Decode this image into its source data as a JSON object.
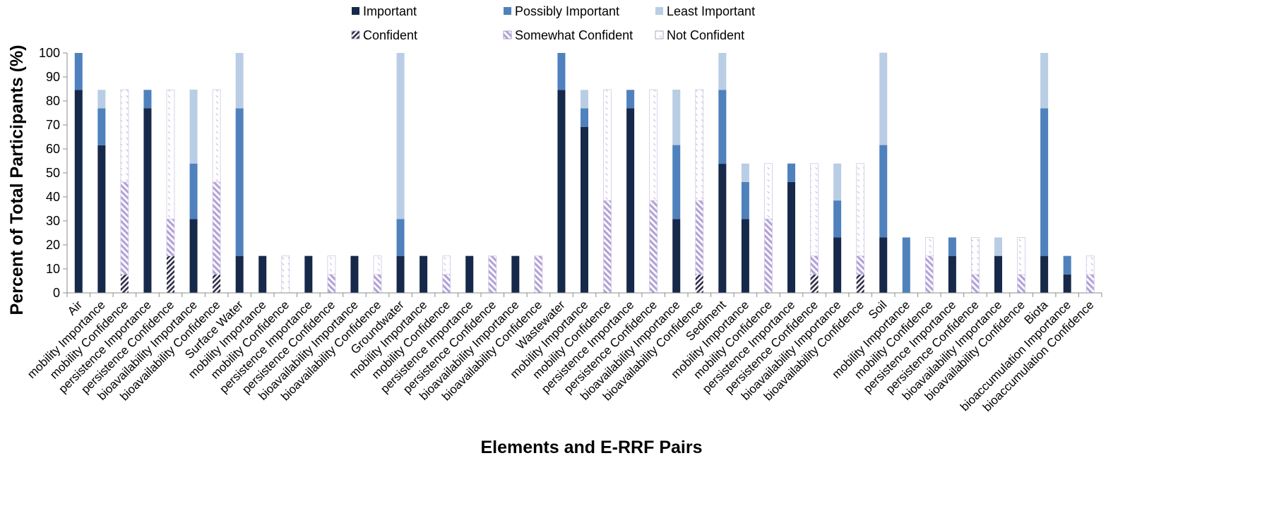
{
  "chart_data": {
    "type": "bar",
    "stacked": true,
    "xlabel": "Elements and E-RRF Pairs",
    "ylabel": "Percent of Total Participants (%)",
    "ylim": [
      0,
      100
    ],
    "yticks": [
      0,
      10,
      20,
      30,
      40,
      50,
      60,
      70,
      80,
      90,
      100
    ],
    "grid": false,
    "legend_position": "top",
    "categories": [
      "Air",
      "mobility Importance",
      "mobility Confidence",
      "persistence Importance",
      "persistence Confidence",
      "bioavailability Importance",
      "bioavailability Confidence",
      "Surface Water",
      "mobility Importance",
      "mobility Confidence",
      "persistence Importance",
      "persistence Confidence",
      "bioavailability Importance",
      "bioavailability Confidence",
      "Groundwater",
      "mobility Importance",
      "mobility Confidence",
      "persistence Importance",
      "persistence Confidence",
      "bioavailability Importance",
      "bioavailability Confidence",
      "Wastewater",
      "mobility Importance",
      "mobility Confidence",
      "persistence Importance",
      "persistence Confidence",
      "bioavailability Importance",
      "bioavailability Confidence",
      "Sediment",
      "mobility Importance",
      "mobility Confidence",
      "persistence Importance",
      "persistence Confidence",
      "bioavailability Importance",
      "bioavailability Confidence",
      "Soil",
      "mobility Importance",
      "mobility Confidence",
      "persistence Importance",
      "persistence Confidence",
      "bioavailability Importance",
      "bioavailability Confidence",
      "Biota",
      "bioaccumulation Importance",
      "bioaccumulation Confidence"
    ],
    "series": [
      {
        "name": "Important",
        "color": "#17294a",
        "pattern": "solid",
        "values": [
          84.6,
          61.5,
          0,
          76.9,
          0,
          30.8,
          0,
          15.4,
          15.4,
          0,
          15.4,
          0,
          15.4,
          0,
          15.4,
          15.4,
          0,
          15.4,
          0,
          15.4,
          0,
          84.6,
          69.2,
          0,
          76.9,
          0,
          30.8,
          0,
          53.8,
          30.8,
          0,
          46.2,
          0,
          23.1,
          0,
          23.1,
          0,
          0,
          15.4,
          0,
          15.4,
          0,
          15.4,
          7.7,
          0
        ]
      },
      {
        "name": "Possibly Important",
        "color": "#4f81bd",
        "pattern": "solid",
        "values": [
          15.4,
          15.4,
          0,
          7.7,
          0,
          23.1,
          0,
          61.5,
          0,
          0,
          0,
          0,
          0,
          0,
          15.4,
          0,
          0,
          0,
          0,
          0,
          0,
          15.4,
          7.7,
          0,
          7.7,
          0,
          30.8,
          0,
          30.8,
          15.4,
          0,
          7.7,
          0,
          15.4,
          0,
          38.5,
          23.1,
          0,
          7.7,
          0,
          0,
          0,
          61.5,
          7.7,
          0
        ]
      },
      {
        "name": "Least Important",
        "color": "#b9cde5",
        "pattern": "solid",
        "values": [
          0,
          7.7,
          0,
          0,
          0,
          30.8,
          0,
          23.1,
          0,
          0,
          0,
          0,
          0,
          0,
          69.2,
          0,
          0,
          0,
          0,
          0,
          0,
          0,
          7.7,
          0,
          0,
          0,
          23.1,
          0,
          15.4,
          7.7,
          0,
          0,
          0,
          15.4,
          0,
          38.5,
          0,
          0,
          0,
          0,
          7.7,
          0,
          23.1,
          0,
          0
        ]
      },
      {
        "name": "Confident",
        "color": "#2e2e4a",
        "pattern": "hatch-dark",
        "values": [
          0,
          0,
          7.7,
          0,
          15.4,
          0,
          7.7,
          0,
          0,
          0,
          0,
          0,
          0,
          0,
          0,
          0,
          0,
          0,
          0,
          0,
          0,
          0,
          0,
          0,
          0,
          0,
          0,
          7.7,
          0,
          0,
          0,
          0,
          7.7,
          0,
          7.7,
          0,
          0,
          0,
          0,
          0,
          0,
          0,
          0,
          0,
          0
        ]
      },
      {
        "name": "Somewhat Confident",
        "color": "#b3a2d6",
        "pattern": "hatch-purple",
        "values": [
          0,
          0,
          38.5,
          0,
          15.4,
          0,
          38.5,
          0,
          0,
          0,
          0,
          7.7,
          0,
          7.7,
          0,
          0,
          7.7,
          0,
          15.4,
          0,
          15.4,
          0,
          0,
          38.5,
          0,
          38.5,
          0,
          30.8,
          0,
          0,
          30.8,
          0,
          7.7,
          0,
          7.7,
          0,
          0,
          15.4,
          0,
          7.7,
          0,
          7.7,
          0,
          0,
          7.7
        ]
      },
      {
        "name": "Not Confident",
        "color": "#c9c2e0",
        "pattern": "hatch-light",
        "values": [
          0,
          0,
          38.5,
          0,
          53.8,
          0,
          38.5,
          0,
          0,
          15.4,
          0,
          7.7,
          0,
          7.7,
          0,
          0,
          7.7,
          0,
          0,
          0,
          0,
          0,
          0,
          46.2,
          0,
          46.2,
          0,
          46.2,
          0,
          0,
          23.1,
          0,
          38.5,
          0,
          38.5,
          0,
          0,
          7.7,
          0,
          15.4,
          0,
          15.4,
          0,
          0,
          7.7
        ]
      }
    ]
  }
}
